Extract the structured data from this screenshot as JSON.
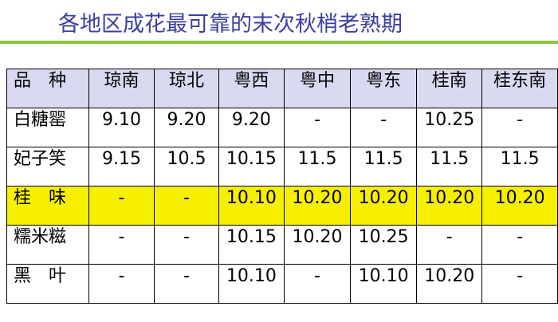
{
  "title": "各地区成花最可靠的末次秋梢老熟期",
  "table": {
    "headers": [
      "品　种",
      "琼南",
      "琼北",
      "粤西",
      "粤中",
      "粤东",
      "桂南",
      "桂东南"
    ],
    "rows": [
      [
        "白糖罂",
        "9.10",
        "9.20",
        "9.20",
        "-",
        "-",
        "10.25",
        "-"
      ],
      [
        "妃子笑",
        "9.15",
        "10.5",
        "10.15",
        "11.5",
        "11.5",
        "11.5",
        "11.5"
      ],
      [
        "桂　味",
        "-",
        "-",
        "10.10",
        "10.20",
        "10.20",
        "10.20",
        "10.20"
      ],
      [
        "糯米糍",
        "-",
        "-",
        "10.15",
        "10.20",
        "10.25",
        "-",
        "-"
      ],
      [
        "黑　叶",
        "-",
        "-",
        "10.10",
        "-",
        "10.10",
        "10.20",
        "-"
      ]
    ],
    "highlight_row": 2,
    "highlight_color": "#f7ef00",
    "header_color": "#d9d9f0"
  },
  "colors": {
    "title": "#3b3fa0",
    "rule": "#8cc63f"
  }
}
